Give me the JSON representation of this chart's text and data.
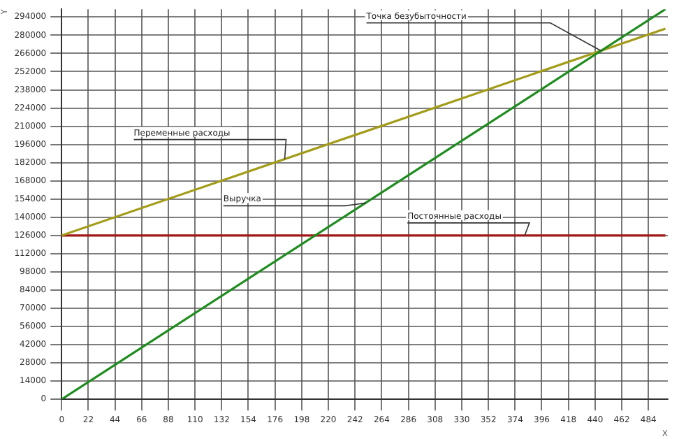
{
  "chart_data": {
    "type": "line",
    "xlabel": "X",
    "ylabel": "Y",
    "series": [
      {
        "values": [
          0,
          300000
        ],
        "color": "#1e8c1e"
      },
      {
        "values": [
          126000,
          285000
        ],
        "color": "#a39c18"
      },
      {
        "values": [
          126000,
          126000
        ],
        "color": "#a01818"
      }
    ],
    "x": [
      0,
      498
    ],
    "xlim": [
      0,
      500
    ],
    "xticks": [
      0,
      22,
      44,
      66,
      88,
      110,
      132,
      154,
      176,
      198,
      220,
      242,
      264,
      286,
      308,
      330,
      352,
      374,
      396,
      418,
      440,
      462,
      484
    ],
    "ylim": [
      0,
      300000
    ],
    "yticks": [
      0,
      14000,
      28000,
      42000,
      56000,
      70000,
      84000,
      98000,
      112000,
      126000,
      140000,
      154000,
      168000,
      182000,
      196000,
      210000,
      224000,
      238000,
      252000,
      266000,
      280000,
      294000
    ],
    "annotations": [
      {
        "text": "Точка безубыточности",
        "x": 445,
        "y": 268000
      },
      {
        "text": "Переменные расходы",
        "x": 184,
        "y": 184700
      },
      {
        "text": "Выручка",
        "x": 251,
        "y": 151000
      },
      {
        "text": "Постоянные расходы",
        "x": 382,
        "y": 126000
      }
    ],
    "grid": true,
    "legend": false,
    "marker": "none",
    "line_style": "solid"
  }
}
